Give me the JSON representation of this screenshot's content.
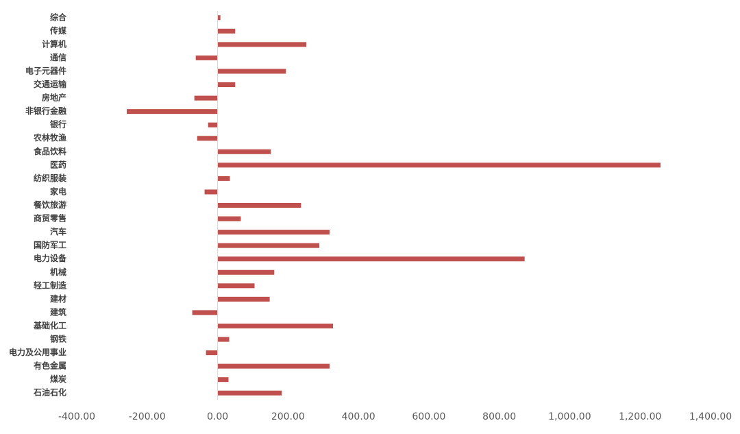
{
  "chart_data": {
    "type": "bar",
    "orientation": "horizontal",
    "color": "#c0504d",
    "grid": false,
    "categories": [
      "综合",
      "传媒",
      "计算机",
      "通信",
      "电子元器件",
      "交通运输",
      "房地产",
      "非银行金融",
      "银行",
      "农林牧渔",
      "食品饮料",
      "医药",
      "纺织服装",
      "家电",
      "餐饮旅游",
      "商贸零售",
      "汽车",
      "国防军工",
      "电力设备",
      "机械",
      "轻工制造",
      "建材",
      "建筑",
      "基础化工",
      "钢铁",
      "电力及公用事业",
      "有色金属",
      "煤炭",
      "石油石化"
    ],
    "values": [
      8,
      50,
      252,
      -62,
      194,
      50,
      -66,
      -258,
      -27,
      -58,
      151,
      1258,
      35,
      -37,
      237,
      66,
      318,
      289,
      872,
      161,
      105,
      148,
      -72,
      328,
      33,
      -33,
      318,
      31,
      182
    ],
    "xlim": [
      -400,
      1400
    ],
    "xticks": [
      {
        "value": -400,
        "label": "-400.00"
      },
      {
        "value": -200,
        "label": "-200.00"
      },
      {
        "value": 0,
        "label": "0.00"
      },
      {
        "value": 200,
        "label": "200.00"
      },
      {
        "value": 400,
        "label": "400.00"
      },
      {
        "value": 600,
        "label": "600.00"
      },
      {
        "value": 800,
        "label": "800.00"
      },
      {
        "value": 1000,
        "label": "1,000.00"
      },
      {
        "value": 1200,
        "label": "1,200.00"
      },
      {
        "value": 1400,
        "label": "1,400.00"
      }
    ]
  }
}
